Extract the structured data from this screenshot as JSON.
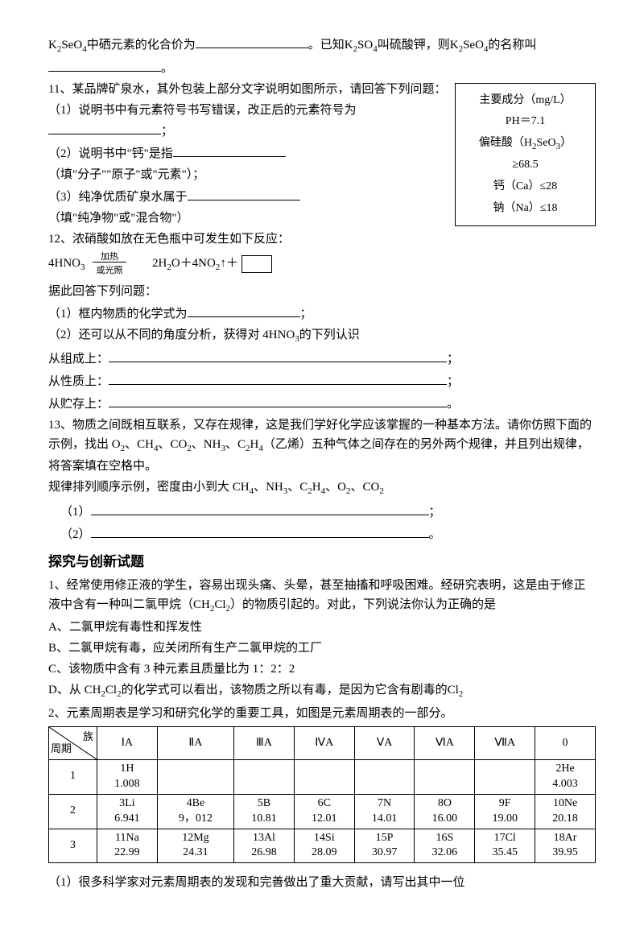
{
  "p10": {
    "t1": "K",
    "t2": "SeO",
    "t3": "中硒元素的化合价为",
    "t4": "。已知K",
    "t5": "SO",
    "t6": "叫硫酸钾，则K",
    "t7": "SeO",
    "t8": "的名称叫",
    "t9": "。"
  },
  "p11": {
    "head": "11、某品牌矿泉水，其外包装上部分文字说明如图所示，请回答下列问题：",
    "l1": "（1）说明书中有元素符号书写错误，改正后的元素符号为",
    "l1e": "；",
    "l2a": "（2）说明书中\"钙\"是指",
    "l2b": "（填\"分子\"\"原子\"或\"元素\"）；",
    "l3a": "（3）纯净优质矿泉水属于",
    "l3b": "（填\"纯净物\"或\"混合物\"）"
  },
  "infobox": {
    "l1": "主要成分（mg/L）",
    "l2": "PH＝7.1",
    "l3a": "偏硅酸（H",
    "l3b": "SeO",
    "l3c": "）",
    "l4": "≥68.5",
    "l5": "钙（Ca）≤28",
    "l6": "钠（Na）≤18"
  },
  "p12": {
    "head": "12、浓硝酸如放在无色瓶中可发生如下反应：",
    "lhs": "4HNO",
    "cond_top": "加热",
    "cond_bot": "或光照",
    "rhs1": "2H",
    "rhs2": "O＋4NO",
    "rhs3": "↑＋",
    "tail": "据此回答下列问题：",
    "q1a": "（1）框内物质的化学式为",
    "q1b": "；",
    "q2": "（2）还可以从不同的角度分析，获得对 4HNO",
    "q2b": "的下列认识",
    "c1a": "从组成上：",
    "c1b": "；",
    "c2a": "从性质上：",
    "c2b": "；",
    "c3a": "从贮存上：",
    "c3b": "。"
  },
  "p13": {
    "head1": "13、物质之间既相互联系，又存在规律，这是我们学好化学应该掌握的一种基本方法。请你仿照下面的示例，找出 O",
    "head2": "、CH",
    "head3": "、CO",
    "head4": "、NH",
    "head5": "、C",
    "head6": "H",
    "head7": "（乙烯）五种气体之间存在的另外两个规律，并且列出规律，将答案填在空格中。",
    "ex1": "规律排列顺序示例，密度由小到大 CH",
    "ex2": "、NH",
    "ex3": "、C",
    "ex4": "H",
    "ex5": "、O",
    "ex6": "、CO",
    "a1": "（1）",
    "a1e": "；",
    "a2": "（2）",
    "a2e": "。"
  },
  "section": "探究与创新试题",
  "q1": {
    "head": "1、经常使用修正液的学生，容易出现头痛、头晕，甚至抽搐和呼吸困难。经研究表明，这是由于修正液中含有一种叫二氯甲烷（CH",
    "head2": "Cl",
    "head3": "）的物质引起的。对此，下列说法你认为正确的是",
    "a": "A、二氯甲烷有毒性和挥发性",
    "b": "B、二氯甲烷有毒，应关闭所有生产二氯甲烷的工厂",
    "c": "C、该物质中含有 3 种元素且质量比为 1：2：2",
    "d1": "D、从 CH",
    "d2": "Cl",
    "d3": "的化学式可以看出，该物质之所以有毒，是因为它含有剧毒的Cl"
  },
  "q2": {
    "head": "2、元素周期表是学习和研究化学的重要工具，如图是元素周期表的一部分。",
    "diag_top": "族",
    "diag_bot": "周期",
    "cols": [
      "ⅠA",
      "ⅡA",
      "ⅢA",
      "ⅣA",
      "ⅤA",
      "ⅥA",
      "ⅦA",
      "0"
    ],
    "rows": [
      {
        "n": "1",
        "c": [
          [
            "1H",
            "1.008"
          ],
          [
            "",
            ""
          ],
          [
            "",
            ""
          ],
          [
            "",
            ""
          ],
          [
            "",
            ""
          ],
          [
            "",
            ""
          ],
          [
            "",
            ""
          ],
          [
            "2He",
            "4.003"
          ]
        ]
      },
      {
        "n": "2",
        "c": [
          [
            "3Li",
            "6.941"
          ],
          [
            "4Be",
            "9，012"
          ],
          [
            "5B",
            "10.81"
          ],
          [
            "6C",
            "12.01"
          ],
          [
            "7N",
            "14.01"
          ],
          [
            "8O",
            "16.00"
          ],
          [
            "9F",
            "19.00"
          ],
          [
            "10Ne",
            "20.18"
          ]
        ]
      },
      {
        "n": "3",
        "c": [
          [
            "11Na",
            "22.99"
          ],
          [
            "12Mg",
            "24.31"
          ],
          [
            "13Al",
            "26.98"
          ],
          [
            "14Si",
            "28.09"
          ],
          [
            "15P",
            "30.97"
          ],
          [
            "16S",
            "32.06"
          ],
          [
            "17Cl",
            "35.45"
          ],
          [
            "18Ar",
            "39.95"
          ]
        ]
      }
    ],
    "after": "（1）很多科学家对元素周期表的发现和完善做出了重大贡献，请写出其中一位"
  }
}
